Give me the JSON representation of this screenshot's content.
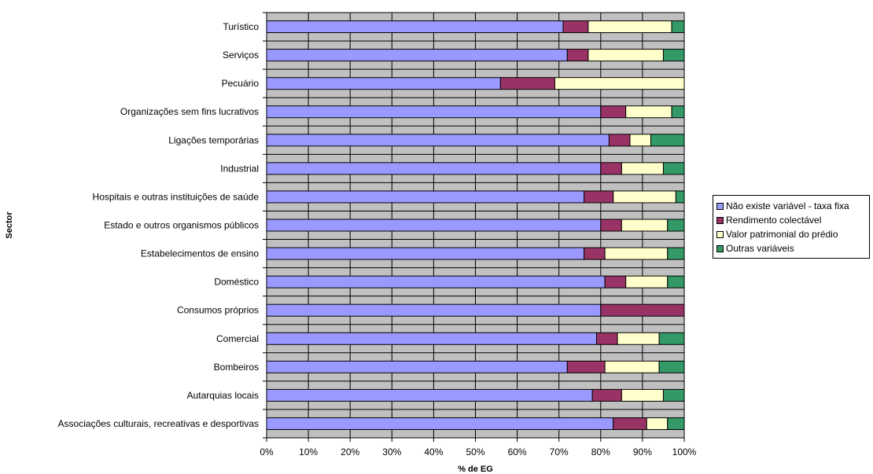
{
  "chart_data": {
    "type": "bar",
    "orientation": "horizontal",
    "stacked": "percent",
    "title": "",
    "xlabel": "% de EG",
    "ylabel": "Sector",
    "xlim": [
      0,
      100
    ],
    "x_ticks": [
      "0%",
      "10%",
      "20%",
      "30%",
      "40%",
      "50%",
      "60%",
      "70%",
      "80%",
      "90%",
      "100%"
    ],
    "grid": true,
    "legend_position": "right",
    "categories": [
      "Turístico",
      "Serviços",
      "Pecuário",
      "Organizações sem fins lucrativos",
      "Ligações temporárias",
      "Industrial",
      "Hospitais e outras instituições de saúde",
      "Estado e outros organismos públicos",
      "Estabelecimentos de ensino",
      "Doméstico",
      "Consumos próprios",
      "Comercial",
      "Bombeiros",
      "Autarquias locais",
      "Associações culturais, recreativas e desportivas"
    ],
    "series": [
      {
        "name": "Não existe variável - taxa fixa",
        "color": "#9999FF",
        "values": [
          71,
          72,
          56,
          80,
          82,
          80,
          76,
          80,
          76,
          81,
          80,
          79,
          72,
          78,
          83
        ]
      },
      {
        "name": "Rendimento colectável",
        "color": "#993366",
        "values": [
          6,
          5,
          13,
          6,
          5,
          5,
          7,
          5,
          5,
          5,
          20,
          5,
          9,
          7,
          8
        ]
      },
      {
        "name": "Valor patrimonial do prédio",
        "color": "#FFFFCC",
        "values": [
          20,
          18,
          31,
          11,
          5,
          10,
          15,
          11,
          15,
          10,
          0,
          10,
          13,
          10,
          5
        ]
      },
      {
        "name": "Outras variáveis",
        "color": "#339966",
        "values": [
          3,
          5,
          0,
          3,
          8,
          5,
          2,
          4,
          4,
          4,
          0,
          6,
          6,
          5,
          4
        ]
      }
    ],
    "plot_background": "#C0C0C0"
  }
}
